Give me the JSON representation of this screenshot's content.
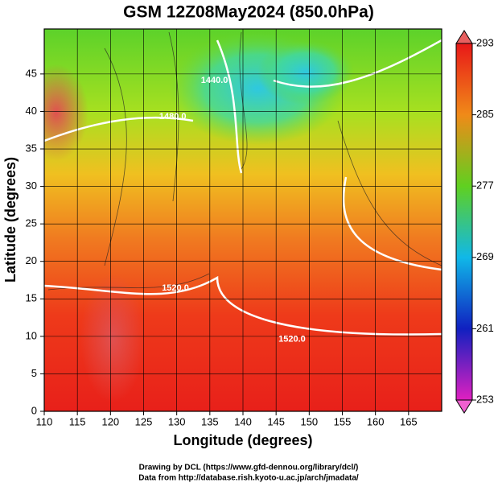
{
  "chart_data": {
    "type": "contour-map",
    "title": "GSM 12Z08May2024 (850.0hPa)",
    "xlabel": "Longitude (degrees)",
    "ylabel": "Latitude  (degrees)",
    "xlim": [
      110,
      170
    ],
    "ylim": [
      0,
      51
    ],
    "xticks": [
      110,
      115,
      120,
      125,
      130,
      135,
      140,
      145,
      150,
      155,
      160,
      165
    ],
    "yticks": [
      0,
      5,
      10,
      15,
      20,
      25,
      30,
      35,
      40,
      45
    ],
    "grid": true,
    "colorbar": {
      "lim": [
        253,
        293
      ],
      "ticks": [
        253,
        261,
        269,
        277,
        285,
        293
      ]
    },
    "contour_labels": [
      {
        "value": 1440,
        "label": "1440.0",
        "lon": 135.7,
        "lat": 44.1
      },
      {
        "value": 1480,
        "label": "1480.0",
        "lon": 129.4,
        "lat": 39.3
      },
      {
        "value": 1520,
        "label": "1520.0",
        "lon": 129.8,
        "lat": 16.4
      },
      {
        "value": 1520,
        "label": "1520.0",
        "lon": 147.4,
        "lat": 9.6
      }
    ],
    "credits": [
      "Drawing by DCL (https://www.gfd-dennou.org/library/dcl/)",
      "Data from http://database.rish.kyoto-u.ac.jp/arch/jmadata/"
    ]
  }
}
